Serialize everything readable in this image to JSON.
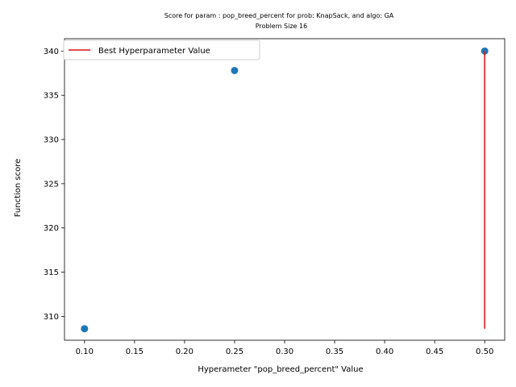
{
  "chart_data": {
    "type": "scatter",
    "title": "Score for param : pop_breed_percent for prob: KnapSack, and algo: GA",
    "subtitle": "Problem Size 16",
    "xlabel": "Hyperameter \"pop_breed_percent\" Value",
    "ylabel": "Function score",
    "xlim": [
      0.08,
      0.52
    ],
    "ylim": [
      307.3,
      341.4
    ],
    "x_ticks": [
      0.1,
      0.15,
      0.2,
      0.25,
      0.3,
      0.35,
      0.4,
      0.45,
      0.5
    ],
    "x_tick_labels": [
      "0.10",
      "0.15",
      "0.20",
      "0.25",
      "0.30",
      "0.35",
      "0.40",
      "0.45",
      "0.50"
    ],
    "y_ticks": [
      310,
      315,
      320,
      325,
      330,
      335,
      340
    ],
    "y_tick_labels": [
      "310",
      "315",
      "320",
      "325",
      "330",
      "335",
      "340"
    ],
    "series": [
      {
        "x": [
          0.1,
          0.25,
          0.5
        ],
        "y": [
          308.6,
          337.8,
          340.0
        ],
        "color": "#1f77b4"
      }
    ],
    "best_line": {
      "name": "Best Hyperparameter Value",
      "x": 0.5,
      "y_from": 308.6,
      "y_to": 340.0,
      "color": "#dd1111"
    },
    "legend_position": "top-left",
    "grid": false
  }
}
